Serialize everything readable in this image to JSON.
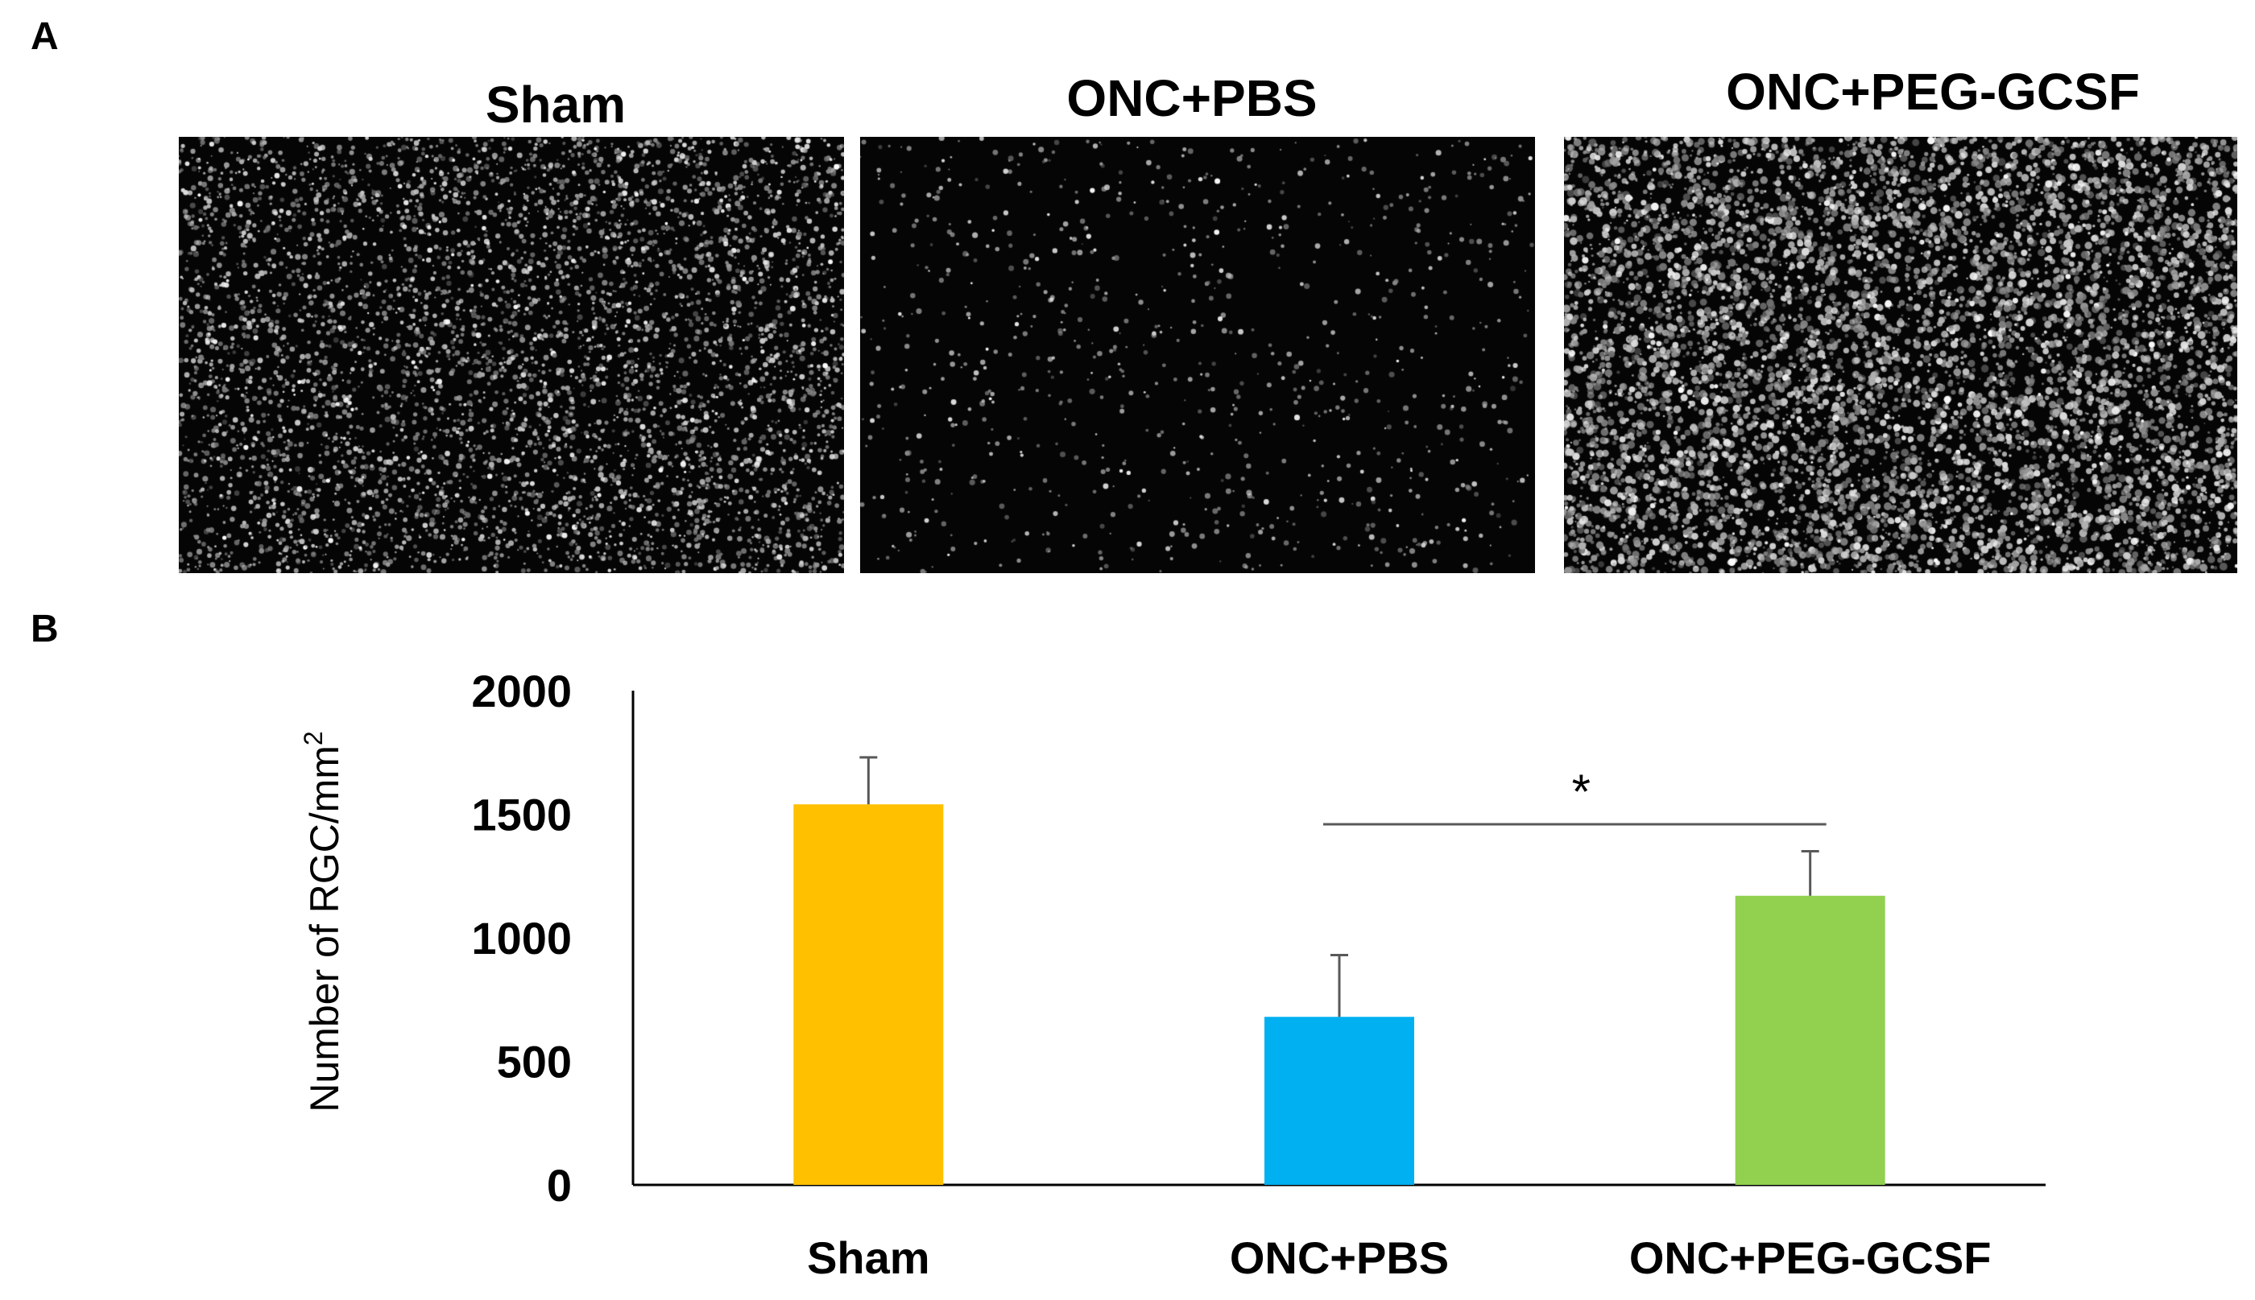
{
  "panels": {
    "a_label": "A",
    "b_label": "B",
    "image_titles": [
      "Sham",
      "ONC+PBS",
      "ONC+PEG-GCSF"
    ]
  },
  "chart_data": {
    "type": "bar",
    "categories": [
      "Sham",
      "ONC+PBS",
      "ONC+PEG-GCSF"
    ],
    "values": [
      1540,
      680,
      1170
    ],
    "errors": [
      190,
      250,
      180
    ],
    "colors": [
      "#FFC000",
      "#00B0F0",
      "#92D050"
    ],
    "ylabel": "Number of RGC/mm",
    "ylabel_superscript": "2",
    "ylim": [
      0,
      2000
    ],
    "yticks": [
      0,
      500,
      1000,
      1500,
      2000
    ],
    "significance": {
      "from": "ONC+PBS",
      "to": "ONC+PEG-GCSF",
      "label": "*"
    },
    "grid": false
  }
}
